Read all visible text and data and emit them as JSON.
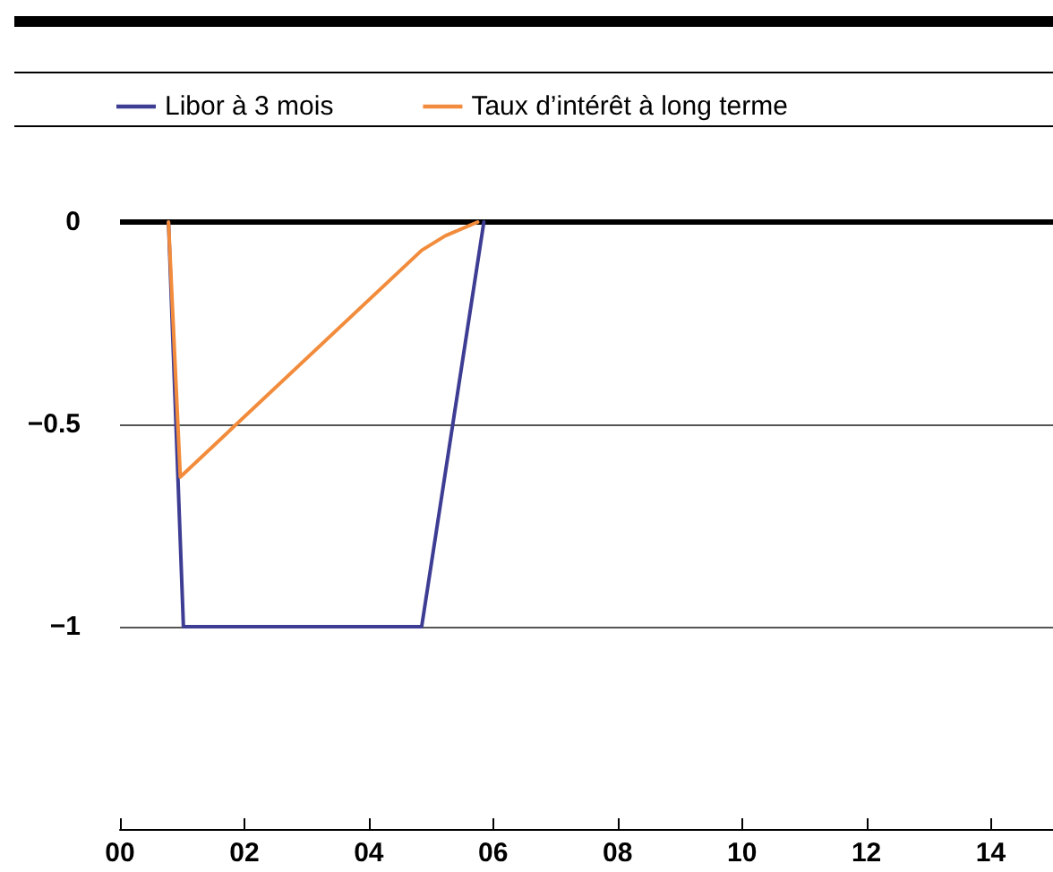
{
  "chart_data": {
    "type": "line",
    "series": [
      {
        "name": "Libor à 3 mois",
        "color": "#3e3d94",
        "x": [
          0.78,
          1.02,
          4.85,
          5.85
        ],
        "values": [
          0,
          -1,
          -1,
          0
        ]
      },
      {
        "name": "Taux d’intérêt à long terme",
        "color": "#f28c3c",
        "x": [
          0.78,
          0.97,
          4.85,
          5.23,
          5.75
        ],
        "values": [
          0,
          -0.63,
          -0.07,
          -0.034,
          0
        ]
      }
    ],
    "xlim": [
      0,
      15
    ],
    "xticks": [
      {
        "value": 0,
        "label": "00"
      },
      {
        "value": 2,
        "label": "02"
      },
      {
        "value": 4,
        "label": "04"
      },
      {
        "value": 6,
        "label": "06"
      },
      {
        "value": 8,
        "label": "08"
      },
      {
        "value": 10,
        "label": "10"
      },
      {
        "value": 12,
        "label": "12"
      },
      {
        "value": 14,
        "label": "14"
      }
    ],
    "ylim": [
      -1.5,
      0
    ],
    "yticks": [
      {
        "value": -1.5,
        "label": null
      },
      {
        "value": -1,
        "label": "−1"
      },
      {
        "value": -0.5,
        "label": "−0.5"
      },
      {
        "value": 0,
        "label": "0"
      }
    ],
    "grid": "y",
    "legend": "top left",
    "marker": "none",
    "line_style": "solid"
  }
}
